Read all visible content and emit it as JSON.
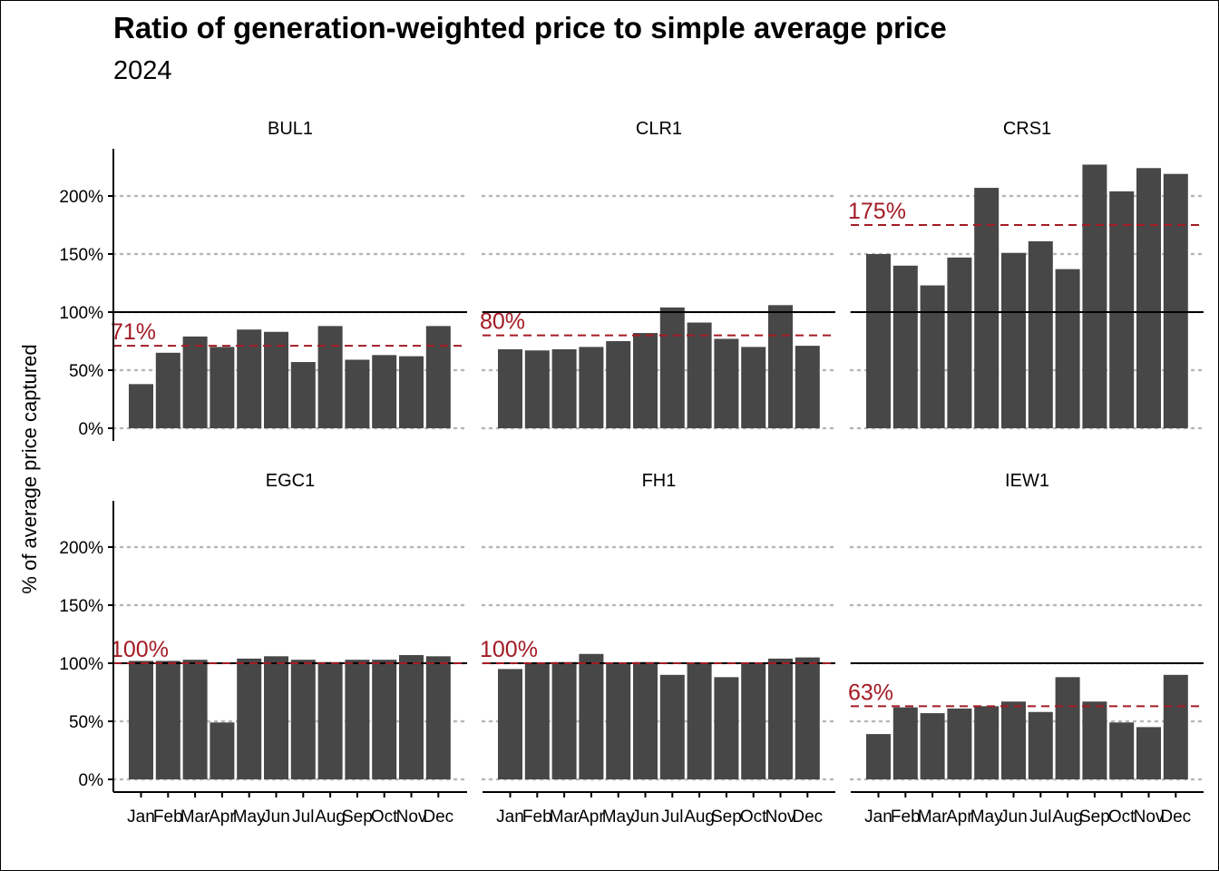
{
  "title": "Ratio of generation-weighted price to simple average price",
  "subtitle": "2024",
  "ylabel": "% of average price captured",
  "colors": {
    "bar": "#474747",
    "average_line": "#a31b24",
    "reference_line": "#000000",
    "grid": "#b8b8b8"
  },
  "chart_data": {
    "type": "bar",
    "facet_layout": "2 rows x 3 columns",
    "categories": [
      "Jan",
      "Feb",
      "Mar",
      "Apr",
      "May",
      "Jun",
      "Jul",
      "Aug",
      "Sep",
      "Oct",
      "Nov",
      "Dec"
    ],
    "ylim": [
      0,
      240
    ],
    "yticks": [
      0,
      50,
      100,
      150,
      200
    ],
    "ytick_labels": [
      "0%",
      "50%",
      "100%",
      "150%",
      "200%"
    ],
    "reference_value": 100,
    "grid": "horizontal dotted",
    "panels": [
      {
        "name": "BUL1",
        "values": [
          38,
          65,
          79,
          70,
          85,
          83,
          57,
          88,
          59,
          63,
          62,
          88
        ],
        "average": 71,
        "average_label": "71%"
      },
      {
        "name": "CLR1",
        "values": [
          68,
          67,
          68,
          70,
          75,
          82,
          104,
          91,
          77,
          70,
          106,
          71
        ],
        "average": 80,
        "average_label": "80%"
      },
      {
        "name": "CRS1",
        "values": [
          150,
          140,
          123,
          147,
          207,
          151,
          161,
          137,
          227,
          204,
          224,
          219
        ],
        "average": 175,
        "average_label": "175%"
      },
      {
        "name": "EGC1",
        "values": [
          102,
          102,
          103,
          49,
          104,
          106,
          103,
          101,
          103,
          103,
          107,
          106
        ],
        "average": 100,
        "average_label": "100%"
      },
      {
        "name": "FH1",
        "values": [
          95,
          100,
          101,
          108,
          100,
          101,
          90,
          100,
          88,
          100,
          104,
          105
        ],
        "average": 100,
        "average_label": "100%"
      },
      {
        "name": "IEW1",
        "values": [
          39,
          62,
          57,
          61,
          63,
          67,
          58,
          88,
          67,
          49,
          45,
          90
        ],
        "average": 63,
        "average_label": "63%"
      }
    ]
  }
}
